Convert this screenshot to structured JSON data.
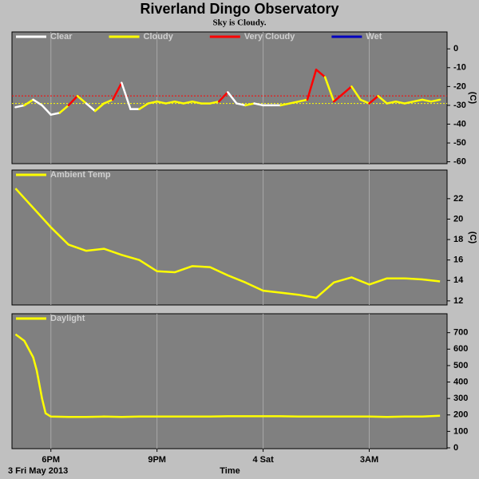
{
  "title": "Riverland Dingo Observatory",
  "subtitle": "Sky is Cloudy.",
  "x_label": "Time",
  "date_label": "3 Fri May 2013",
  "chart_data": [
    {
      "type": "condition_line",
      "y_label": "(C)",
      "legend": [
        {
          "name": "Clear",
          "color": "#ffffff"
        },
        {
          "name": "Cloudy",
          "color": "#ffff00"
        },
        {
          "name": "Very Cloudy",
          "color": "#ff0000"
        },
        {
          "name": "Wet",
          "color": "#0000c0"
        }
      ],
      "x": [
        17,
        17.25,
        17.5,
        17.75,
        18,
        18.25,
        18.5,
        18.75,
        19,
        19.25,
        19.5,
        19.75,
        20,
        20.25,
        20.5,
        20.75,
        21,
        21.25,
        21.5,
        21.75,
        22,
        22.25,
        22.5,
        22.75,
        23,
        23.25,
        23.5,
        23.75,
        24,
        24.25,
        24.5,
        24.75,
        25,
        25.25,
        25.5,
        25.75,
        26,
        26.25,
        26.5,
        26.75,
        27,
        27.25,
        27.5,
        27.75,
        28,
        28.25,
        28.5,
        28.75,
        29
      ],
      "values": [
        -31,
        -30,
        -27,
        -30,
        -35,
        -34,
        -30,
        -25,
        -29,
        -33,
        -29,
        -27,
        -18,
        -32,
        -32,
        -29,
        -28,
        -29,
        -28,
        -29,
        -28,
        -29,
        -29,
        -28,
        -23,
        -29,
        -30,
        -29,
        -30,
        -30,
        -30,
        -29,
        -28,
        -27,
        -11,
        -15,
        -28,
        -24,
        -20,
        -27,
        -29,
        -25,
        -29,
        -28,
        -29,
        -28,
        -27,
        -28,
        -27
      ],
      "conditions": [
        0,
        0,
        1,
        0,
        0,
        0,
        1,
        2,
        1,
        0,
        1,
        1,
        2,
        0,
        0,
        1,
        1,
        1,
        1,
        1,
        1,
        1,
        1,
        1,
        2,
        0,
        0,
        1,
        0,
        0,
        0,
        1,
        1,
        1,
        2,
        2,
        1,
        2,
        2,
        1,
        1,
        2,
        1,
        1,
        1,
        1,
        1,
        1,
        1
      ],
      "thresholds": [
        {
          "value": -25,
          "color": "#ff0000"
        },
        {
          "value": -29,
          "color": "#ffff00"
        }
      ],
      "xlim": [
        16.9,
        29.2
      ],
      "ylim": [
        -61,
        9
      ],
      "yticks": [
        0,
        -10,
        -20,
        -30,
        -40,
        -50,
        -60
      ]
    },
    {
      "type": "line",
      "y_label": "(C)",
      "x": [
        17,
        17.5,
        18,
        18.5,
        19,
        19.5,
        20,
        20.5,
        21,
        21.5,
        22,
        22.5,
        23,
        23.5,
        24,
        24.5,
        25,
        25.5,
        26,
        26.5,
        27,
        27.5,
        28,
        28.5,
        29
      ],
      "series": [
        {
          "name": "Ambient Temp",
          "color": "#ffff00",
          "values": [
            23.0,
            21.1,
            19.2,
            17.5,
            16.9,
            17.1,
            16.5,
            16.0,
            14.9,
            14.8,
            15.4,
            15.3,
            14.5,
            13.8,
            13.0,
            12.8,
            12.6,
            12.3,
            13.8,
            14.3,
            13.6,
            14.2,
            14.2,
            14.1,
            13.9
          ]
        }
      ],
      "xlim": [
        16.9,
        29.2
      ],
      "ylim": [
        11.6,
        24.8
      ],
      "yticks": [
        12,
        14,
        16,
        18,
        20,
        22
      ]
    },
    {
      "type": "line",
      "x": [
        17,
        17.25,
        17.5,
        17.6,
        17.75,
        17.85,
        18,
        18.5,
        19,
        19.5,
        20,
        20.5,
        21,
        21.5,
        22,
        22.5,
        23,
        23.5,
        24,
        24.5,
        25,
        25.5,
        26,
        26.5,
        27,
        27.5,
        28,
        28.5,
        29
      ],
      "series": [
        {
          "name": "Daylight",
          "color": "#ffff00",
          "values": [
            690,
            650,
            550,
            470,
            300,
            210,
            190,
            188,
            188,
            190,
            188,
            190,
            190,
            190,
            190,
            190,
            192,
            192,
            192,
            192,
            190,
            190,
            190,
            190,
            190,
            188,
            190,
            190,
            195
          ]
        }
      ],
      "xlim": [
        16.9,
        29.2
      ],
      "ylim": [
        -5,
        815
      ],
      "yticks": [
        0,
        100,
        200,
        300,
        400,
        500,
        600,
        700
      ],
      "xticks": [
        {
          "value": 18,
          "label": "6PM"
        },
        {
          "value": 21,
          "label": "9PM"
        },
        {
          "value": 24,
          "label": "4 Sat"
        },
        {
          "value": 27,
          "label": "3AM"
        }
      ]
    }
  ]
}
